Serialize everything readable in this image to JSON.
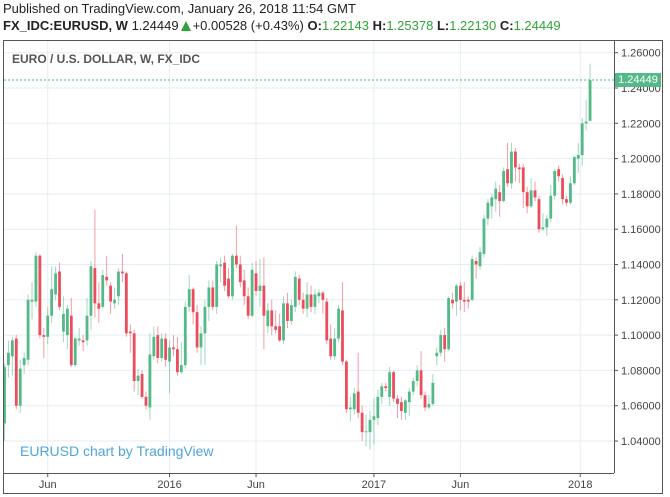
{
  "header": {
    "published": "Published on TradingView.com, January 26, 2018 11:54 GMT",
    "symbol": "FX_IDC:EURUSD, W",
    "last": "1.24449",
    "change": "+0.00528 (+0.43%)",
    "o_label": "O:",
    "o": "1.22143",
    "h_label": "H:",
    "h": "1.25378",
    "l_label": "L:",
    "l": "1.22130",
    "c_label": "C:",
    "c": "1.24449"
  },
  "legend_title": "EURO / U.S. DOLLAR, W, FX_IDC",
  "watermark": "EURUSD chart by TradingView",
  "colors": {
    "up": "#53b987",
    "down": "#eb4d5c",
    "grid": "#e4eef2",
    "watermark": "#4da6dc"
  },
  "chart_data": {
    "type": "candlestick",
    "title": "EURO / U.S. DOLLAR, W, FX_IDC",
    "interval": "W",
    "ylim": [
      1.03,
      1.265
    ],
    "y_ticks": [
      "1.26000",
      "1.24000",
      "1.22000",
      "1.20000",
      "1.18000",
      "1.16000",
      "1.14000",
      "1.12000",
      "1.10000",
      "1.08000",
      "1.06000",
      "1.04000"
    ],
    "x_ticks": [
      {
        "label": "Jun",
        "bar": 11
      },
      {
        "label": "2016",
        "bar": 42
      },
      {
        "label": "Jun",
        "bar": 64
      },
      {
        "label": "2017",
        "bar": 94
      },
      {
        "label": "Jun",
        "bar": 116
      },
      {
        "label": "2018",
        "bar": 146.5
      }
    ],
    "last_price": "1.24449",
    "ohlc": [
      [
        1.05,
        1.084,
        1.04,
        1.082
      ],
      [
        1.083,
        1.097,
        1.076,
        1.09
      ],
      [
        1.088,
        1.099,
        1.077,
        1.097
      ],
      [
        1.098,
        1.1,
        1.058,
        1.06
      ],
      [
        1.06,
        1.086,
        1.056,
        1.081
      ],
      [
        1.083,
        1.09,
        1.078,
        1.087
      ],
      [
        1.086,
        1.123,
        1.083,
        1.12
      ],
      [
        1.119,
        1.13,
        1.109,
        1.12
      ],
      [
        1.119,
        1.147,
        1.116,
        1.145
      ],
      [
        1.145,
        1.146,
        1.098,
        1.1
      ],
      [
        1.1,
        1.104,
        1.087,
        1.099
      ],
      [
        1.099,
        1.116,
        1.095,
        1.111
      ],
      [
        1.111,
        1.139,
        1.107,
        1.126
      ],
      [
        1.123,
        1.139,
        1.12,
        1.135
      ],
      [
        1.136,
        1.141,
        1.114,
        1.116
      ],
      [
        1.102,
        1.122,
        1.096,
        1.112
      ],
      [
        1.1,
        1.117,
        1.092,
        1.115
      ],
      [
        1.111,
        1.121,
        1.082,
        1.083
      ],
      [
        1.083,
        1.099,
        1.082,
        1.098
      ],
      [
        1.097,
        1.104,
        1.094,
        1.098
      ],
      [
        1.097,
        1.1,
        1.091,
        1.096
      ],
      [
        1.097,
        1.121,
        1.094,
        1.111
      ],
      [
        1.111,
        1.142,
        1.103,
        1.139
      ],
      [
        1.138,
        1.171,
        1.11,
        1.118
      ],
      [
        1.118,
        1.13,
        1.107,
        1.115
      ],
      [
        1.116,
        1.137,
        1.115,
        1.134
      ],
      [
        1.133,
        1.145,
        1.128,
        1.131
      ],
      [
        1.128,
        1.13,
        1.112,
        1.119
      ],
      [
        1.118,
        1.127,
        1.115,
        1.12
      ],
      [
        1.122,
        1.138,
        1.117,
        1.136
      ],
      [
        1.136,
        1.146,
        1.13,
        1.135
      ],
      [
        1.135,
        1.136,
        1.099,
        1.101
      ],
      [
        1.102,
        1.106,
        1.09,
        1.101
      ],
      [
        1.101,
        1.103,
        1.068,
        1.074
      ],
      [
        1.074,
        1.081,
        1.066,
        1.077
      ],
      [
        1.078,
        1.08,
        1.064,
        1.065
      ],
      [
        1.065,
        1.068,
        1.058,
        1.06
      ],
      [
        1.059,
        1.101,
        1.052,
        1.089
      ],
      [
        1.088,
        1.105,
        1.086,
        1.099
      ],
      [
        1.1,
        1.105,
        1.084,
        1.087
      ],
      [
        1.087,
        1.101,
        1.085,
        1.098
      ],
      [
        1.098,
        1.101,
        1.082,
        1.086
      ],
      [
        1.085,
        1.097,
        1.067,
        1.093
      ],
      [
        1.093,
        1.1,
        1.088,
        1.092
      ],
      [
        1.092,
        1.099,
        1.077,
        1.079
      ],
      [
        1.079,
        1.096,
        1.078,
        1.083
      ],
      [
        1.083,
        1.119,
        1.081,
        1.116
      ],
      [
        1.116,
        1.134,
        1.113,
        1.126
      ],
      [
        1.126,
        1.127,
        1.106,
        1.113
      ],
      [
        1.113,
        1.117,
        1.09,
        1.093
      ],
      [
        1.093,
        1.105,
        1.083,
        1.101
      ],
      [
        1.101,
        1.12,
        1.083,
        1.116
      ],
      [
        1.116,
        1.131,
        1.108,
        1.127
      ],
      [
        1.127,
        1.131,
        1.114,
        1.116
      ],
      [
        1.116,
        1.142,
        1.112,
        1.14
      ],
      [
        1.139,
        1.144,
        1.13,
        1.14
      ],
      [
        1.141,
        1.145,
        1.125,
        1.128
      ],
      [
        1.132,
        1.138,
        1.121,
        1.122
      ],
      [
        1.122,
        1.146,
        1.12,
        1.145
      ],
      [
        1.145,
        1.162,
        1.138,
        1.14
      ],
      [
        1.14,
        1.145,
        1.127,
        1.13
      ],
      [
        1.131,
        1.137,
        1.117,
        1.122
      ],
      [
        1.122,
        1.127,
        1.109,
        1.111
      ],
      [
        1.111,
        1.141,
        1.11,
        1.137
      ],
      [
        1.135,
        1.142,
        1.122,
        1.125
      ],
      [
        1.125,
        1.143,
        1.116,
        1.128
      ],
      [
        1.128,
        1.144,
        1.092,
        1.111
      ],
      [
        1.105,
        1.118,
        1.101,
        1.114
      ],
      [
        1.114,
        1.12,
        1.1,
        1.105
      ],
      [
        1.105,
        1.114,
        1.101,
        1.103
      ],
      [
        1.105,
        1.112,
        1.096,
        1.097
      ],
      [
        1.097,
        1.122,
        1.095,
        1.118
      ],
      [
        1.118,
        1.124,
        1.104,
        1.108
      ],
      [
        1.108,
        1.12,
        1.106,
        1.117
      ],
      [
        1.116,
        1.136,
        1.113,
        1.133
      ],
      [
        1.132,
        1.134,
        1.117,
        1.12
      ],
      [
        1.12,
        1.124,
        1.112,
        1.115
      ],
      [
        1.115,
        1.13,
        1.11,
        1.123
      ],
      [
        1.123,
        1.128,
        1.113,
        1.116
      ],
      [
        1.116,
        1.126,
        1.112,
        1.123
      ],
      [
        1.122,
        1.126,
        1.118,
        1.124
      ],
      [
        1.124,
        1.125,
        1.112,
        1.12
      ],
      [
        1.119,
        1.121,
        1.095,
        1.097
      ],
      [
        1.098,
        1.106,
        1.086,
        1.088
      ],
      [
        1.088,
        1.104,
        1.086,
        1.098
      ],
      [
        1.098,
        1.117,
        1.096,
        1.115
      ],
      [
        1.114,
        1.13,
        1.083,
        1.085
      ],
      [
        1.085,
        1.086,
        1.056,
        1.058
      ],
      [
        1.058,
        1.065,
        1.051,
        1.059
      ],
      [
        1.058,
        1.07,
        1.055,
        1.067
      ],
      [
        1.068,
        1.09,
        1.053,
        1.056
      ],
      [
        1.056,
        1.06,
        1.04,
        1.045
      ],
      [
        1.045,
        1.055,
        1.037,
        1.0455
      ],
      [
        1.045,
        1.057,
        1.035,
        1.052
      ],
      [
        1.052,
        1.064,
        1.038,
        1.054
      ],
      [
        1.053,
        1.069,
        1.049,
        1.065
      ],
      [
        1.065,
        1.073,
        1.061,
        1.071
      ],
      [
        1.071,
        1.073,
        1.068,
        1.07
      ],
      [
        1.065,
        1.082,
        1.06,
        1.079
      ],
      [
        1.079,
        1.08,
        1.062,
        1.064
      ],
      [
        1.064,
        1.066,
        1.053,
        1.061
      ],
      [
        1.062,
        1.065,
        1.052,
        1.057
      ],
      [
        1.056,
        1.064,
        1.052,
        1.063
      ],
      [
        1.062,
        1.07,
        1.054,
        1.068
      ],
      [
        1.068,
        1.076,
        1.066,
        1.074
      ],
      [
        1.074,
        1.083,
        1.071,
        1.08
      ],
      [
        1.08,
        1.091,
        1.064,
        1.066
      ],
      [
        1.066,
        1.068,
        1.057,
        1.059
      ],
      [
        1.059,
        1.066,
        1.058,
        1.061
      ],
      [
        1.061,
        1.078,
        1.06,
        1.073
      ],
      [
        1.088,
        1.093,
        1.083,
        1.09
      ],
      [
        1.09,
        1.103,
        1.088,
        1.1
      ],
      [
        1.1,
        1.104,
        1.085,
        1.092
      ],
      [
        1.092,
        1.122,
        1.091,
        1.121
      ],
      [
        1.12,
        1.124,
        1.115,
        1.118
      ],
      [
        1.119,
        1.129,
        1.111,
        1.128
      ],
      [
        1.128,
        1.13,
        1.114,
        1.12
      ],
      [
        1.12,
        1.13,
        1.113,
        1.119
      ],
      [
        1.12,
        1.122,
        1.115,
        1.119
      ],
      [
        1.12,
        1.145,
        1.119,
        1.143
      ],
      [
        1.142,
        1.144,
        1.132,
        1.14
      ],
      [
        1.139,
        1.15,
        1.137,
        1.147
      ],
      [
        1.146,
        1.168,
        1.144,
        1.166
      ],
      [
        1.166,
        1.177,
        1.162,
        1.175
      ],
      [
        1.173,
        1.18,
        1.166,
        1.178
      ],
      [
        1.177,
        1.187,
        1.17,
        1.183
      ],
      [
        1.181,
        1.185,
        1.167,
        1.176
      ],
      [
        1.176,
        1.195,
        1.175,
        1.193
      ],
      [
        1.194,
        1.209,
        1.184,
        1.186
      ],
      [
        1.186,
        1.209,
        1.183,
        1.204
      ],
      [
        1.204,
        1.206,
        1.187,
        1.195
      ],
      [
        1.195,
        1.197,
        1.186,
        1.194
      ],
      [
        1.195,
        1.197,
        1.172,
        1.181
      ],
      [
        1.181,
        1.184,
        1.169,
        1.173
      ],
      [
        1.173,
        1.189,
        1.172,
        1.182
      ],
      [
        1.182,
        1.187,
        1.176,
        1.178
      ],
      [
        1.177,
        1.179,
        1.158,
        1.16
      ],
      [
        1.16,
        1.169,
        1.159,
        1.161
      ],
      [
        1.161,
        1.168,
        1.156,
        1.166
      ],
      [
        1.166,
        1.185,
        1.164,
        1.179
      ],
      [
        1.179,
        1.194,
        1.177,
        1.193
      ],
      [
        1.194,
        1.196,
        1.187,
        1.19
      ],
      [
        1.189,
        1.191,
        1.174,
        1.177
      ],
      [
        1.177,
        1.179,
        1.173,
        1.175
      ],
      [
        1.175,
        1.19,
        1.174,
        1.186
      ],
      [
        1.186,
        1.201,
        1.185,
        1.201
      ],
      [
        1.2,
        1.209,
        1.192,
        1.202
      ],
      [
        1.202,
        1.223,
        1.196,
        1.22
      ],
      [
        1.22,
        1.233,
        1.216,
        1.221
      ],
      [
        1.2214,
        1.2538,
        1.2213,
        1.2445
      ]
    ]
  }
}
